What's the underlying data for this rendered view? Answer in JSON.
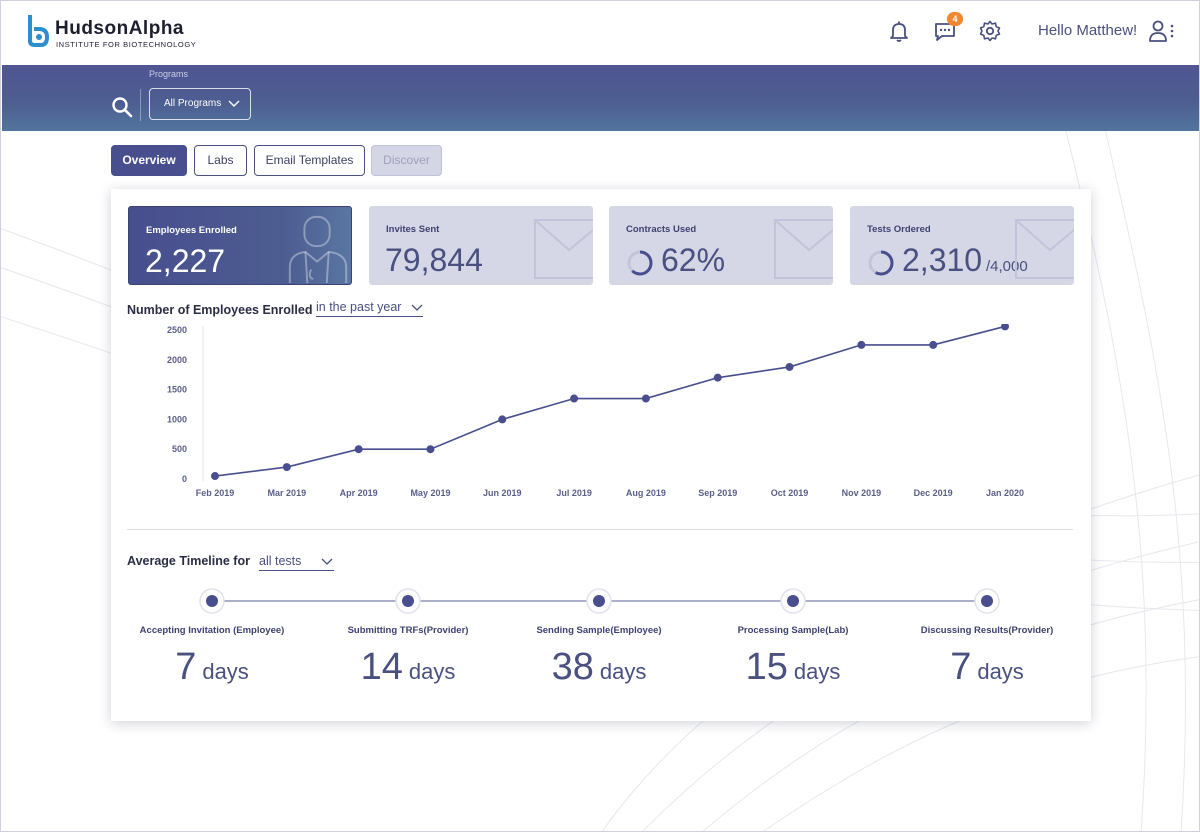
{
  "header": {
    "logo_name": "HudsonAlpha",
    "logo_subtitle": "INSTITUTE FOR BIOTECHNOLOGY",
    "messages_badge": "4",
    "greeting": "Hello Matthew!",
    "icons": [
      "bell-icon",
      "chat-icon",
      "gear-icon",
      "user-icon"
    ]
  },
  "banner": {
    "programs_label": "Programs",
    "programs_selected": "All Programs"
  },
  "tabs": [
    {
      "label": "Overview",
      "state": "active"
    },
    {
      "label": "Labs",
      "state": "normal"
    },
    {
      "label": "Email Templates",
      "state": "normal"
    },
    {
      "label": "Discover",
      "state": "disabled"
    }
  ],
  "stats": [
    {
      "label": "Employees Enrolled",
      "value": "2,227",
      "icon": "doctor-icon"
    },
    {
      "label": "Invites Sent",
      "value": "79,844",
      "icon": "envelope-icon"
    },
    {
      "label": "Contracts Used",
      "value": "62%",
      "icon": "envelope-icon",
      "progress": 0.62
    },
    {
      "label": "Tests Ordered",
      "value": "2,310",
      "suffix": "/4,000",
      "icon": "envelope-icon",
      "progress": 0.5775
    }
  ],
  "enrolled_chart": {
    "title": "Number of Employees Enrolled",
    "period": "in the past year"
  },
  "chart_data": {
    "type": "line",
    "categories": [
      "Feb 2019",
      "Mar 2019",
      "Apr 2019",
      "May 2019",
      "Jun 2019",
      "Jul 2019",
      "Aug 2019",
      "Sep 2019",
      "Oct 2019",
      "Nov 2019",
      "Dec 2019",
      "Jan 2020"
    ],
    "series": [
      {
        "values": [
          50,
          200,
          500,
          500,
          1000,
          1350,
          1350,
          1700,
          1880,
          2250,
          2250,
          2560
        ]
      }
    ],
    "yticks": [
      0,
      500,
      1000,
      1500,
      2000,
      2500
    ],
    "ylim": [
      0,
      2500
    ],
    "grid": false,
    "color": "#484e8e"
  },
  "timeline": {
    "title": "Average Timeline for",
    "filter": "all tests",
    "stages": [
      {
        "label": "Accepting Invitation (Employee)",
        "value": "7",
        "unit": "days"
      },
      {
        "label": "Submitting TRFs(Provider)",
        "value": "14",
        "unit": "days"
      },
      {
        "label": "Sending Sample(Employee)",
        "value": "38",
        "unit": "days"
      },
      {
        "label": "Processing Sample(Lab)",
        "value": "15",
        "unit": "days"
      },
      {
        "label": "Discussing Results(Provider)",
        "value": "7",
        "unit": "days"
      }
    ]
  },
  "colors": {
    "primary": "#484e8e",
    "badge": "#f2882d",
    "muted_card": "#d5d7e6"
  }
}
